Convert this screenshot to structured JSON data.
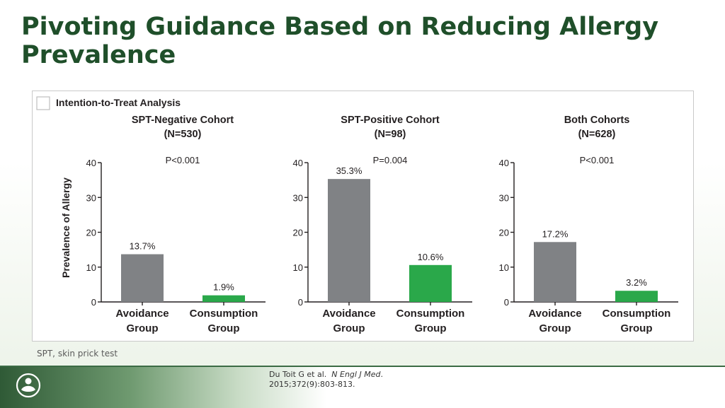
{
  "slide": {
    "title": "Pivoting Guidance Based on Reducing Allergy Prevalence",
    "footnote": "SPT, skin prick test",
    "citation": {
      "authors": "Du Toit G et al.",
      "journal": "N Engl J Med",
      "details": ". 2015;372(9):803-813."
    },
    "logo_icon": "circular-brand-logo-icon"
  },
  "colors": {
    "title": "#1f4f2a",
    "avoidance_bar": "#808285",
    "consumption_bar": "#2aa84a",
    "axis": "#231f20"
  },
  "chart_data": {
    "heading": "Intention-to-Treat Analysis",
    "ylabel": "Prevalence of Allergy",
    "ylim": [
      0,
      40
    ],
    "yticks": [
      0,
      10,
      20,
      30,
      40
    ],
    "charts": [
      {
        "type": "bar",
        "title": "SPT-Negative Cohort",
        "n_label": "(N=530)",
        "p_value": "P<0.001",
        "categories": [
          "Avoidance Group",
          "Consumption Group"
        ],
        "category_lines": [
          [
            "Avoidance",
            "Group"
          ],
          [
            "Consumption",
            "Group"
          ]
        ],
        "values": [
          13.7,
          1.9
        ],
        "value_labels": [
          "13.7%",
          "1.9%"
        ]
      },
      {
        "type": "bar",
        "title": "SPT-Positive Cohort",
        "n_label": "(N=98)",
        "p_value": "P=0.004",
        "categories": [
          "Avoidance Group",
          "Consumption Group"
        ],
        "category_lines": [
          [
            "Avoidance",
            "Group"
          ],
          [
            "Consumption",
            "Group"
          ]
        ],
        "values": [
          35.3,
          10.6
        ],
        "value_labels": [
          "35.3%",
          "10.6%"
        ]
      },
      {
        "type": "bar",
        "title": "Both Cohorts",
        "n_label": "(N=628)",
        "p_value": "P<0.001",
        "categories": [
          "Avoidance Group",
          "Consumption Group"
        ],
        "category_lines": [
          [
            "Avoidance",
            "Group"
          ],
          [
            "Consumption",
            "Group"
          ]
        ],
        "values": [
          17.2,
          3.2
        ],
        "value_labels": [
          "17.2%",
          "3.2%"
        ]
      }
    ]
  }
}
